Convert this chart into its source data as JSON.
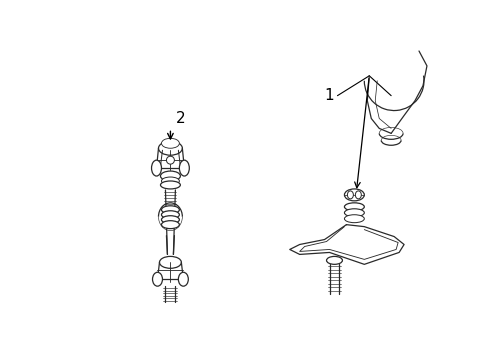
{
  "background_color": "#ffffff",
  "figsize": [
    4.89,
    3.6
  ],
  "dpi": 100,
  "label_1": "1",
  "label_2": "2",
  "line_color": "#2a2a2a",
  "line_width": 0.9
}
